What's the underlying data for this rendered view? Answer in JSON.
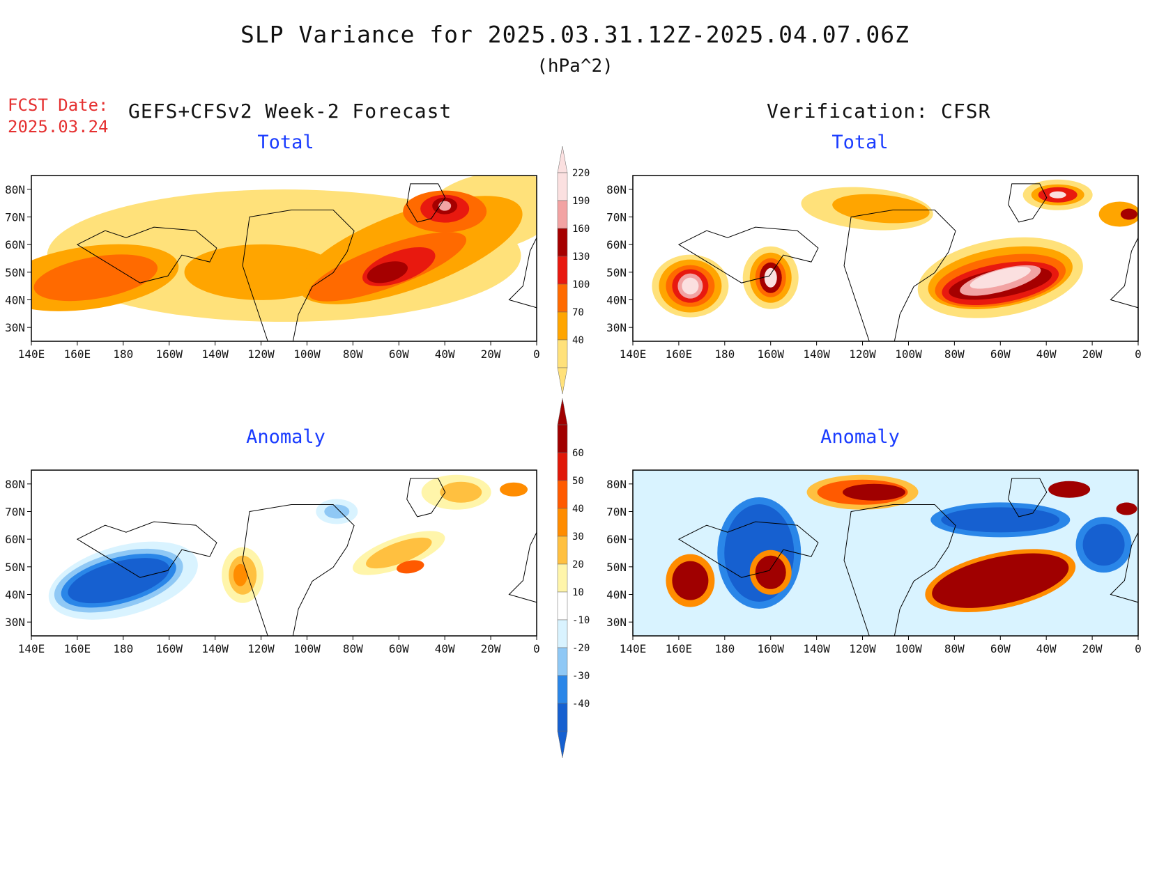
{
  "title": "SLP Variance for 2025.03.31.12Z-2025.04.07.06Z",
  "units": "(hPa^2)",
  "fcst_label": "FCST Date:",
  "fcst_date": "2025.03.24",
  "left_header": "GEFS+CFSv2 Week-2 Forecast",
  "right_header": "Verification: CFSR",
  "panels": [
    {
      "id": "fcst-total",
      "title": "Total",
      "field": "total"
    },
    {
      "id": "verif-total",
      "title": "Total",
      "field": "total"
    },
    {
      "id": "fcst-anomaly",
      "title": "Anomaly",
      "field": "anomaly"
    },
    {
      "id": "verif-anomaly",
      "title": "Anomaly",
      "field": "anomaly"
    }
  ],
  "lon_labels": [
    "140E",
    "160E",
    "180",
    "160W",
    "140W",
    "120W",
    "100W",
    "80W",
    "60W",
    "40W",
    "20W",
    "0"
  ],
  "lat_labels": [
    "30N",
    "40N",
    "50N",
    "60N",
    "70N",
    "80N"
  ],
  "total_scale": {
    "levels": [
      "40",
      "70",
      "100",
      "130",
      "160",
      "190",
      "220"
    ],
    "colors": [
      "#ffe17a",
      "#ffa500",
      "#ff6a00",
      "#e8190f",
      "#a50000",
      "#f2a3a3",
      "#fbe0e0"
    ]
  },
  "anomaly_scale": {
    "levels": [
      "-40",
      "-30",
      "-20",
      "-10",
      "10",
      "20",
      "30",
      "40",
      "50",
      "60"
    ],
    "colors": [
      "#1660d0",
      "#2a86e8",
      "#8fc8f5",
      "#d9f3ff",
      "#ffffff",
      "#fff5aa",
      "#ffc040",
      "#ff8c00",
      "#ff5a00",
      "#e01808",
      "#a00000"
    ]
  },
  "colors": {
    "title_blue": "#1a3cff",
    "fcst_red": "#e53030"
  }
}
